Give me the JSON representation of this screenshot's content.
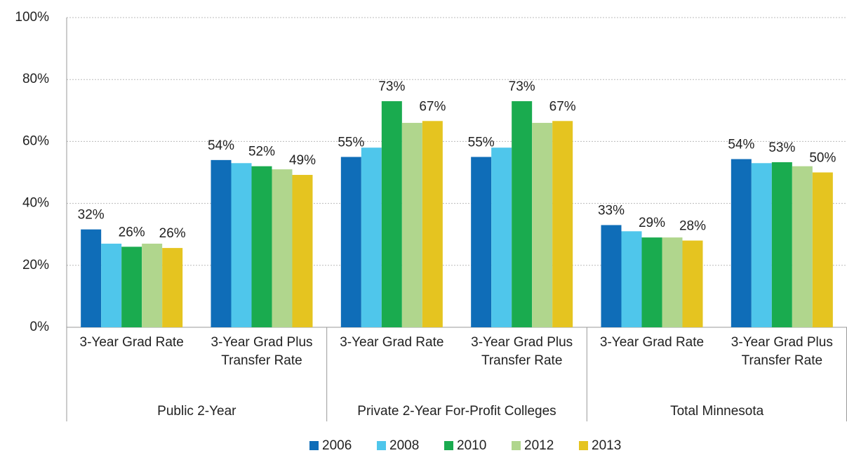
{
  "chart_data": {
    "type": "bar",
    "categories": [
      "3-Year Grad Rate",
      "3-Year Grad Plus Transfer Rate",
      "3-Year Grad Rate",
      "3-Year Grad Plus Transfer Rate",
      "3-Year Grad Rate",
      "3-Year Grad Plus Transfer Rate"
    ],
    "category_groups": [
      "Public 2-Year",
      "Private 2-Year For-Profit Colleges",
      "Total Minnesota"
    ],
    "series": [
      {
        "name": "2006",
        "color": "#0f6db8",
        "values": [
          31.6,
          54,
          55,
          55,
          33,
          54.3
        ],
        "value_labels": [
          "32%",
          "54%",
          "55%",
          "55%",
          "33%",
          "54%"
        ]
      },
      {
        "name": "2008",
        "color": "#4fc6eb",
        "values": [
          27,
          53,
          58,
          58,
          31,
          53
        ]
      },
      {
        "name": "2010",
        "color": "#1aab4f",
        "values": [
          26,
          52,
          73,
          73,
          29,
          53.3
        ],
        "value_labels": [
          "26%",
          "52%",
          "73%",
          "73%",
          "29%",
          "53%"
        ]
      },
      {
        "name": "2012",
        "color": "#b0d68d",
        "values": [
          27,
          51,
          66,
          66,
          29,
          52
        ]
      },
      {
        "name": "2013",
        "color": "#e5c420",
        "values": [
          25.6,
          49.2,
          66.6,
          66.6,
          28,
          50
        ],
        "value_labels": [
          "26%",
          "49%",
          "67%",
          "67%",
          "28%",
          "50%"
        ]
      }
    ],
    "ylim": [
      0,
      100
    ],
    "yticks": [
      {
        "value": 0,
        "label": "0%"
      },
      {
        "value": 20,
        "label": "20%"
      },
      {
        "value": 40,
        "label": "40%"
      },
      {
        "value": 60,
        "label": "60%"
      },
      {
        "value": 80,
        "label": "80%"
      },
      {
        "value": 100,
        "label": "100%"
      }
    ],
    "grid": true,
    "legend": "bottom"
  }
}
